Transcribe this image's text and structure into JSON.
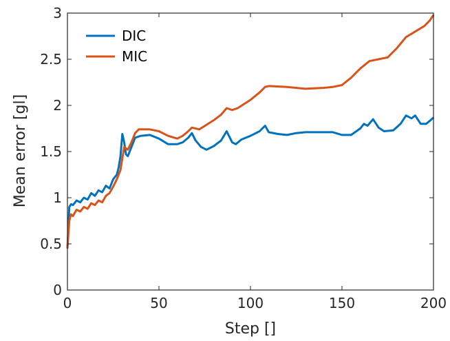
{
  "chart_data": {
    "type": "line",
    "xlabel": "Step []",
    "ylabel": "Mean error  [gl]",
    "xlim": [
      0,
      200
    ],
    "ylim": [
      0,
      3
    ],
    "xticks": [
      "0",
      "50",
      "100",
      "150",
      "200"
    ],
    "yticks": [
      "0",
      "0.5",
      "1",
      "1.5",
      "2",
      "2.5",
      "3"
    ],
    "grid": false,
    "legend_position": "top-left",
    "series": [
      {
        "name": "DIC",
        "color": "#0072BD",
        "points": [
          [
            0,
            0.45
          ],
          [
            1,
            0.9
          ],
          [
            2,
            0.93
          ],
          [
            3,
            0.92
          ],
          [
            5,
            0.97
          ],
          [
            7,
            0.95
          ],
          [
            9,
            1.0
          ],
          [
            11,
            0.98
          ],
          [
            13,
            1.05
          ],
          [
            15,
            1.02
          ],
          [
            17,
            1.08
          ],
          [
            19,
            1.06
          ],
          [
            21,
            1.13
          ],
          [
            23,
            1.1
          ],
          [
            25,
            1.2
          ],
          [
            27,
            1.25
          ],
          [
            28,
            1.33
          ],
          [
            29,
            1.45
          ],
          [
            30,
            1.69
          ],
          [
            31,
            1.6
          ],
          [
            32,
            1.47
          ],
          [
            33,
            1.45
          ],
          [
            35,
            1.55
          ],
          [
            37,
            1.65
          ],
          [
            40,
            1.67
          ],
          [
            45,
            1.68
          ],
          [
            50,
            1.64
          ],
          [
            55,
            1.58
          ],
          [
            60,
            1.58
          ],
          [
            63,
            1.6
          ],
          [
            66,
            1.65
          ],
          [
            68,
            1.7
          ],
          [
            70,
            1.62
          ],
          [
            73,
            1.55
          ],
          [
            76,
            1.52
          ],
          [
            80,
            1.56
          ],
          [
            84,
            1.62
          ],
          [
            87,
            1.72
          ],
          [
            88,
            1.68
          ],
          [
            90,
            1.6
          ],
          [
            92,
            1.58
          ],
          [
            95,
            1.63
          ],
          [
            100,
            1.67
          ],
          [
            105,
            1.72
          ],
          [
            108,
            1.78
          ],
          [
            110,
            1.71
          ],
          [
            115,
            1.69
          ],
          [
            120,
            1.68
          ],
          [
            125,
            1.7
          ],
          [
            130,
            1.71
          ],
          [
            140,
            1.71
          ],
          [
            145,
            1.71
          ],
          [
            150,
            1.68
          ],
          [
            155,
            1.68
          ],
          [
            160,
            1.75
          ],
          [
            162,
            1.8
          ],
          [
            164,
            1.78
          ],
          [
            167,
            1.85
          ],
          [
            170,
            1.76
          ],
          [
            173,
            1.72
          ],
          [
            178,
            1.73
          ],
          [
            182,
            1.8
          ],
          [
            185,
            1.89
          ],
          [
            188,
            1.86
          ],
          [
            190,
            1.89
          ],
          [
            193,
            1.8
          ],
          [
            196,
            1.8
          ],
          [
            199,
            1.85
          ],
          [
            200,
            1.87
          ]
        ]
      },
      {
        "name": "MIC",
        "color": "#D95319",
        "points": [
          [
            0,
            0.45
          ],
          [
            1,
            0.75
          ],
          [
            2,
            0.82
          ],
          [
            3,
            0.8
          ],
          [
            5,
            0.87
          ],
          [
            7,
            0.85
          ],
          [
            9,
            0.9
          ],
          [
            11,
            0.88
          ],
          [
            13,
            0.94
          ],
          [
            15,
            0.92
          ],
          [
            17,
            0.97
          ],
          [
            19,
            0.95
          ],
          [
            21,
            1.02
          ],
          [
            23,
            1.05
          ],
          [
            25,
            1.12
          ],
          [
            27,
            1.2
          ],
          [
            29,
            1.3
          ],
          [
            31,
            1.55
          ],
          [
            33,
            1.52
          ],
          [
            35,
            1.6
          ],
          [
            37,
            1.7
          ],
          [
            39,
            1.74
          ],
          [
            45,
            1.74
          ],
          [
            50,
            1.72
          ],
          [
            55,
            1.67
          ],
          [
            60,
            1.64
          ],
          [
            63,
            1.67
          ],
          [
            66,
            1.72
          ],
          [
            68,
            1.76
          ],
          [
            72,
            1.74
          ],
          [
            76,
            1.79
          ],
          [
            80,
            1.84
          ],
          [
            84,
            1.9
          ],
          [
            87,
            1.97
          ],
          [
            90,
            1.95
          ],
          [
            93,
            1.97
          ],
          [
            100,
            2.06
          ],
          [
            105,
            2.14
          ],
          [
            108,
            2.2
          ],
          [
            110,
            2.21
          ],
          [
            120,
            2.2
          ],
          [
            130,
            2.18
          ],
          [
            140,
            2.19
          ],
          [
            145,
            2.2
          ],
          [
            150,
            2.22
          ],
          [
            155,
            2.3
          ],
          [
            160,
            2.4
          ],
          [
            165,
            2.48
          ],
          [
            170,
            2.5
          ],
          [
            175,
            2.52
          ],
          [
            180,
            2.62
          ],
          [
            185,
            2.74
          ],
          [
            190,
            2.8
          ],
          [
            195,
            2.86
          ],
          [
            198,
            2.92
          ],
          [
            200,
            2.98
          ]
        ]
      }
    ]
  }
}
